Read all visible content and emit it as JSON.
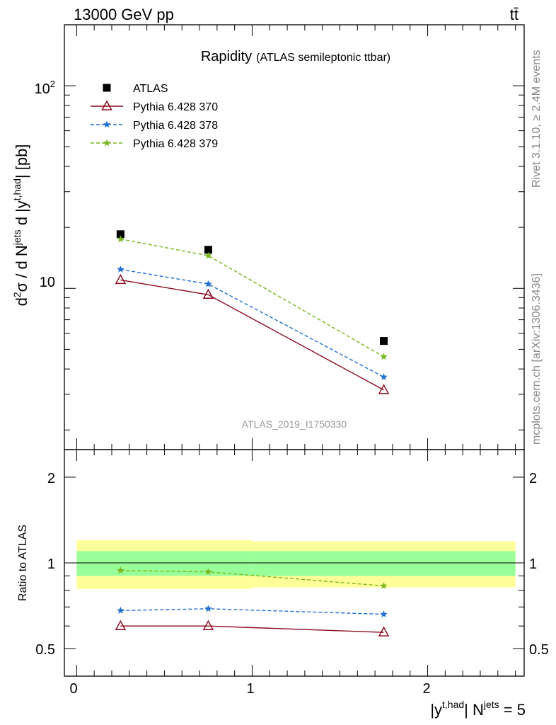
{
  "header": {
    "energy_label": "13000 GeV pp",
    "process_label": "tt̄"
  },
  "side_labels": {
    "rivet": "Rivet 3.1.10, ≥ 2.4M events",
    "mcplots": "mcplots.cern.ch [arXiv:1306.3436]"
  },
  "chart_data": [
    {
      "type": "line",
      "title": "Rapidity",
      "subtitle": "(ATLAS semileptonic ttbar)",
      "watermark": "ATLAS_2019_I1750330",
      "ylabel_parts": {
        "d": "d",
        "sup2": "2",
        "sigma_over": "σ / d N",
        "sup_jets": "jets",
        "dy": " d |y",
        "sup_thad": "t,had",
        "unit": "| [pb]"
      },
      "yscale": "log",
      "xlim": [
        -0.07,
        2.55
      ],
      "ylim": [
        1.6,
        200
      ],
      "ytick_labels": [
        "10",
        "10",
        "2"
      ],
      "x": [
        0.25,
        0.75,
        1.75
      ],
      "bin_edges": [
        0,
        0.5,
        1,
        2.5
      ],
      "series": [
        {
          "name": "ATLAS",
          "values": [
            18.5,
            15.5,
            5.5
          ],
          "color": "#000000",
          "marker": "square",
          "line": "none"
        },
        {
          "name": "Pythia 6.428 370",
          "values": [
            11.0,
            9.3,
            3.15
          ],
          "color": "#8b0a20",
          "marker": "open-triangle",
          "line": "solid"
        },
        {
          "name": "Pythia 6.428 378",
          "values": [
            12.4,
            10.5,
            3.65
          ],
          "color": "#1e6fd0",
          "marker": "star",
          "line": "dashed"
        },
        {
          "name": "Pythia 6.428 379",
          "values": [
            17.5,
            14.5,
            4.6
          ],
          "color": "#7ab51d",
          "marker": "star",
          "line": "dashed"
        }
      ],
      "legend_position": "top-left"
    },
    {
      "type": "line",
      "ylabel": "Ratio to ATLAS",
      "xlabel_parts": {
        "y": "|y",
        "sup_thad": "t,had",
        "nj": "| N",
        "sup_jets": "jets",
        "eq": " = 5"
      },
      "xlim": [
        -0.07,
        2.55
      ],
      "ylim": [
        0.4,
        2.5
      ],
      "xtick_labels": [
        "0",
        "1",
        "2"
      ],
      "ytick_labels": [
        "0.5",
        "1",
        "2"
      ],
      "bands": {
        "inner_color": "#99ff99",
        "outer_color": "#ffff99",
        "bins": [
          {
            "x": [
              0,
              1
            ],
            "inner": [
              0.9,
              1.1
            ],
            "outer": [
              0.81,
              1.2
            ]
          },
          {
            "x": [
              1,
              2.5
            ],
            "inner": [
              0.9,
              1.1
            ],
            "outer": [
              0.82,
              1.19
            ]
          }
        ]
      },
      "x": [
        0.25,
        0.75,
        1.75
      ],
      "series": [
        {
          "name": "Pythia 6.428 370",
          "values": [
            0.6,
            0.6,
            0.57
          ],
          "color": "#8b0a20",
          "marker": "open-triangle",
          "line": "solid"
        },
        {
          "name": "Pythia 6.428 378",
          "values": [
            0.68,
            0.69,
            0.66
          ],
          "color": "#1e6fd0",
          "marker": "star",
          "line": "dashed"
        },
        {
          "name": "Pythia 6.428 379",
          "values": [
            0.94,
            0.93,
            0.83
          ],
          "color": "#7ab51d",
          "marker": "star",
          "line": "dashed"
        }
      ]
    }
  ]
}
